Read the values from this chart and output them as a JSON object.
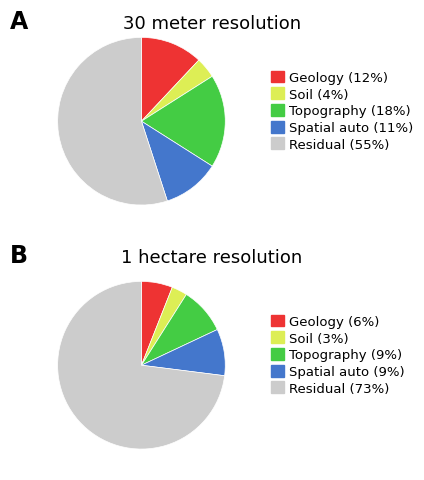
{
  "chart_A": {
    "title": "30 meter resolution",
    "values": [
      12,
      4,
      18,
      11,
      55
    ],
    "labels": [
      "Geology (12%)",
      "Soil (4%)",
      "Topography (18%)",
      "Spatial auto (11%)",
      "Residual (55%)"
    ],
    "colors": [
      "#ee3333",
      "#ddee55",
      "#44cc44",
      "#4477cc",
      "#cccccc"
    ],
    "startangle": 90
  },
  "chart_B": {
    "title": "1 hectare resolution",
    "values": [
      6,
      3,
      9,
      9,
      73
    ],
    "labels": [
      "Geology (6%)",
      "Soil (3%)",
      "Topography (9%)",
      "Spatial auto (9%)",
      "Residual (73%)"
    ],
    "colors": [
      "#ee3333",
      "#ddee55",
      "#44cc44",
      "#4477cc",
      "#cccccc"
    ],
    "startangle": 90
  },
  "label_A": "A",
  "label_B": "B",
  "background_color": "#ffffff",
  "title_fontsize": 13,
  "legend_fontsize": 9.5,
  "label_fontsize": 17
}
